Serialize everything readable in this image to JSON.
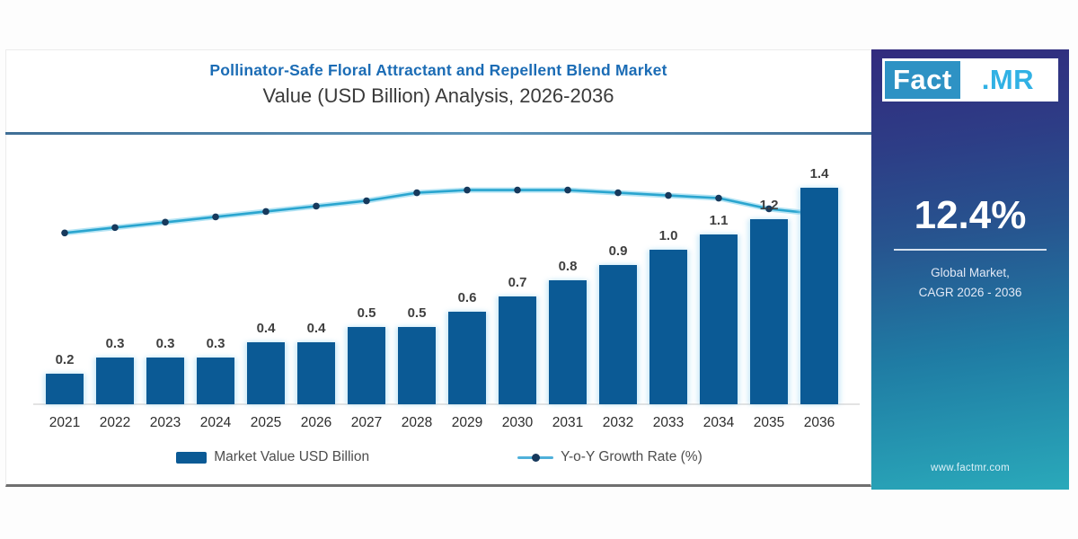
{
  "header": {
    "title": "Pollinator-Safe Floral Attractant and Repellent Blend Market",
    "subtitle": "Value (USD Billion) Analysis, 2026-2036"
  },
  "chart_data": {
    "type": "bar",
    "title": "Pollinator-Safe Floral Attractant and Repellent Blend Market Value (USD Billion) Analysis, 2026-2036",
    "categories": [
      "2021",
      "2022",
      "2023",
      "2024",
      "2025",
      "2026",
      "2027",
      "2028",
      "2029",
      "2030",
      "2031",
      "2032",
      "2033",
      "2034",
      "2035",
      "2036"
    ],
    "series": [
      {
        "name": "Market Value USD Billion",
        "type": "bar",
        "values": [
          0.2,
          0.3,
          0.3,
          0.3,
          0.4,
          0.4,
          0.5,
          0.5,
          0.6,
          0.7,
          0.8,
          0.9,
          1.0,
          1.1,
          1.2,
          1.4
        ],
        "value_labels": [
          "0.2",
          "0.3",
          "0.3",
          "0.3",
          "0.4",
          "0.4",
          "0.5",
          "0.5",
          "0.6",
          "0.7",
          "0.8",
          "0.9",
          "1.0",
          "1.1",
          "1.2",
          "1.4"
        ],
        "color": "#0b5a95"
      },
      {
        "name": "Y-o-Y Growth Rate (%)",
        "type": "line",
        "axis_hidden": true,
        "note": "no numeric axis shown; values are relative plotted heights (0-100)",
        "values_relative": [
          64,
          66,
          68,
          70,
          72,
          74,
          76,
          79,
          80,
          80,
          80,
          79,
          78,
          77,
          73,
          71
        ],
        "color": "#2aa5cf",
        "glow_color": "#b5e4f4",
        "dot_color": "#17395c",
        "end_marker": "open-circle"
      }
    ],
    "legend": [
      {
        "label": "Market Value USD Billion",
        "marker": "bar-swatch"
      },
      {
        "label": "Y-o-Y Growth Rate (%)",
        "marker": "line-dot"
      }
    ],
    "ylim": [
      0,
      1.55
    ],
    "grid": false,
    "legend_position": "bottom",
    "value_axis_visible": false
  },
  "sidebar": {
    "logo_part1": "Fact",
    "logo_part2": ".MR",
    "cagr_value": "12.4%",
    "caption_line1": "Global Market,",
    "caption_line2": "CAGR 2026 - 2036",
    "website": "www.factmr.com",
    "gradient_top": "#322b7e",
    "gradient_bottom": "#2aa9ba"
  },
  "colors": {
    "title": "#1b6cb5",
    "subtitle": "#3a3a3a",
    "bar": "#0b5a95",
    "title_divider": "#4d7fa6",
    "card_bottom_border": "#6f6f6f",
    "axis_text": "#2d2d2d",
    "value_label_text": "#3f3f3f",
    "legend_text": "#4d4d4d"
  }
}
